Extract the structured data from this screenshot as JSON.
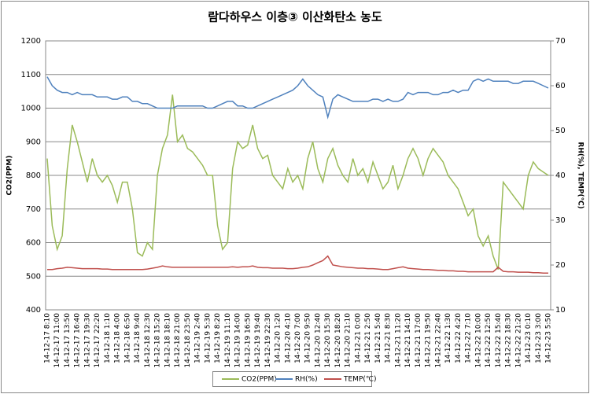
{
  "chart_data": {
    "type": "line",
    "title": "람다하우스 이층③ 이산화탄소 농도",
    "y_label": "CO2(PPM)",
    "y2_label": "RH(%), TEMP(℃)",
    "categories": [
      "14-12-17 8:10",
      null,
      "14-12-17 11:00",
      null,
      "14-12-17 13:50",
      null,
      "14-12-17 16:40",
      null,
      "14-12-17 19:30",
      null,
      "14-12-17 22:20",
      null,
      "14-12-18 1:10",
      null,
      "14-12-18 4:00",
      null,
      "14-12-18 6:50",
      null,
      "14-12-18 9:40",
      null,
      "14-12-18 12:30",
      null,
      "14-12-18 15:20",
      null,
      "14-12-18 18:10",
      null,
      "14-12-18 21:00",
      null,
      "14-12-18 23:50",
      null,
      "14-12-19 2:40",
      null,
      "14-12-19 5:30",
      null,
      "14-12-19 8:20",
      null,
      "14-12-19 11:10",
      null,
      "14-12-19 14:00",
      null,
      "14-12-19 16:50",
      null,
      "14-12-19 19:40",
      null,
      "14-12-19 22:30",
      null,
      "14-12-20 1:20",
      null,
      "14-12-20 4:10",
      null,
      "14-12-20 7:00",
      null,
      "14-12-20 9:50",
      null,
      "14-12-20 12:40",
      null,
      "14-12-20 15:30",
      null,
      "14-12-20 18:20",
      null,
      "14-12-20 21:10",
      null,
      "14-12-21 0:00",
      null,
      "14-12-21 2:50",
      null,
      "14-12-21 5:40",
      null,
      "14-12-21 8:30",
      null,
      "14-12-21 11:20",
      null,
      "14-12-21 14:10",
      null,
      "14-12-21 17:00",
      null,
      "14-12-21 19:50",
      null,
      "14-12-21 22:40",
      null,
      "14-12-22 1:30",
      null,
      "14-12-22 4:20",
      null,
      "14-12-22 7:10",
      null,
      "14-12-22 10:00",
      null,
      "14-12-22 12:50",
      null,
      "14-12-22 15:40",
      null,
      "14-12-22 18:30",
      null,
      "14-12-22 21:20",
      null,
      "14-12-23 0:10",
      null,
      "14-12-23 3:00",
      null,
      "14-12-23 5:50"
    ],
    "series": [
      {
        "name": "CO2(PPM)",
        "color": "#9bbb59",
        "values": [
          850,
          650,
          580,
          620,
          820,
          950,
          900,
          840,
          780,
          850,
          800,
          780,
          800,
          770,
          720,
          780,
          780,
          700,
          570,
          560,
          600,
          580,
          800,
          880,
          920,
          1040,
          900,
          920,
          880,
          870,
          850,
          830,
          800,
          800,
          650,
          580,
          600,
          820,
          900,
          880,
          890,
          950,
          880,
          850,
          860,
          800,
          780,
          760,
          820,
          780,
          800,
          760,
          850,
          900,
          820,
          780,
          850,
          880,
          830,
          800,
          780,
          850,
          800,
          820,
          780,
          840,
          800,
          760,
          780,
          830,
          760,
          800,
          850,
          880,
          850,
          800,
          850,
          880,
          860,
          840,
          800,
          780,
          760,
          720,
          680,
          700,
          620,
          590,
          620,
          560,
          520,
          780,
          760,
          740,
          720,
          700,
          800,
          840,
          820,
          810,
          800
        ]
      },
      {
        "name": "RH(%)",
        "color": "#4f81bd",
        "axis": "y2",
        "values": [
          62,
          60,
          59,
          58.5,
          58.5,
          58,
          58.5,
          58,
          58,
          58,
          57.5,
          57.5,
          57.5,
          57,
          57,
          57.5,
          57.5,
          56.5,
          56.5,
          56,
          56,
          55.5,
          55,
          55,
          55,
          55,
          55.5,
          55.5,
          55.5,
          55.5,
          55.5,
          55.5,
          55,
          55,
          55.5,
          56,
          56.5,
          56.5,
          55.5,
          55.5,
          55,
          55,
          55.5,
          56,
          56.5,
          57,
          57.5,
          58,
          58.5,
          59,
          60,
          61.5,
          60,
          59,
          58,
          57.5,
          53,
          57,
          58,
          57.5,
          57,
          56.5,
          56.5,
          56.5,
          56.5,
          57,
          57,
          56.5,
          57,
          56.5,
          56.5,
          57,
          58.5,
          58,
          58.5,
          58.5,
          58.5,
          58,
          58,
          58.5,
          58.5,
          59,
          58.5,
          59,
          59,
          61,
          61.5,
          61,
          61.5,
          61,
          61,
          61,
          61,
          60.5,
          60.5,
          61,
          61,
          61,
          60.5,
          60,
          59.5
        ]
      },
      {
        "name": "TEMP(℃)",
        "color": "#c0504d",
        "axis": "y2",
        "values": [
          19,
          19,
          19.2,
          19.3,
          19.5,
          19.4,
          19.3,
          19.2,
          19.2,
          19.2,
          19.2,
          19.1,
          19.1,
          19,
          19,
          19,
          19,
          19,
          19,
          19,
          19.1,
          19.3,
          19.5,
          19.8,
          19.6,
          19.5,
          19.5,
          19.5,
          19.5,
          19.5,
          19.5,
          19.5,
          19.5,
          19.5,
          19.5,
          19.5,
          19.5,
          19.6,
          19.5,
          19.6,
          19.6,
          19.8,
          19.5,
          19.4,
          19.4,
          19.3,
          19.3,
          19.3,
          19.2,
          19.2,
          19.3,
          19.5,
          19.6,
          20,
          20.5,
          21,
          22,
          20,
          19.8,
          19.6,
          19.5,
          19.4,
          19.3,
          19.3,
          19.2,
          19.2,
          19.1,
          19,
          19,
          19.2,
          19.4,
          19.6,
          19.3,
          19.2,
          19.1,
          19,
          19,
          18.9,
          18.8,
          18.8,
          18.7,
          18.7,
          18.6,
          18.6,
          18.5,
          18.5,
          18.5,
          18.5,
          18.5,
          18.5,
          19.5,
          18.6,
          18.5,
          18.5,
          18.4,
          18.4,
          18.4,
          18.3,
          18.3,
          18.2,
          18.2
        ]
      }
    ],
    "ylim": [
      400,
      1200
    ],
    "yticks": [
      400,
      500,
      600,
      700,
      800,
      900,
      1000,
      1100,
      1200
    ],
    "y2lim": [
      10,
      70
    ],
    "y2ticks": [
      10,
      20,
      30,
      40,
      50,
      60,
      70
    ],
    "grid": true,
    "legend": "bottom"
  }
}
